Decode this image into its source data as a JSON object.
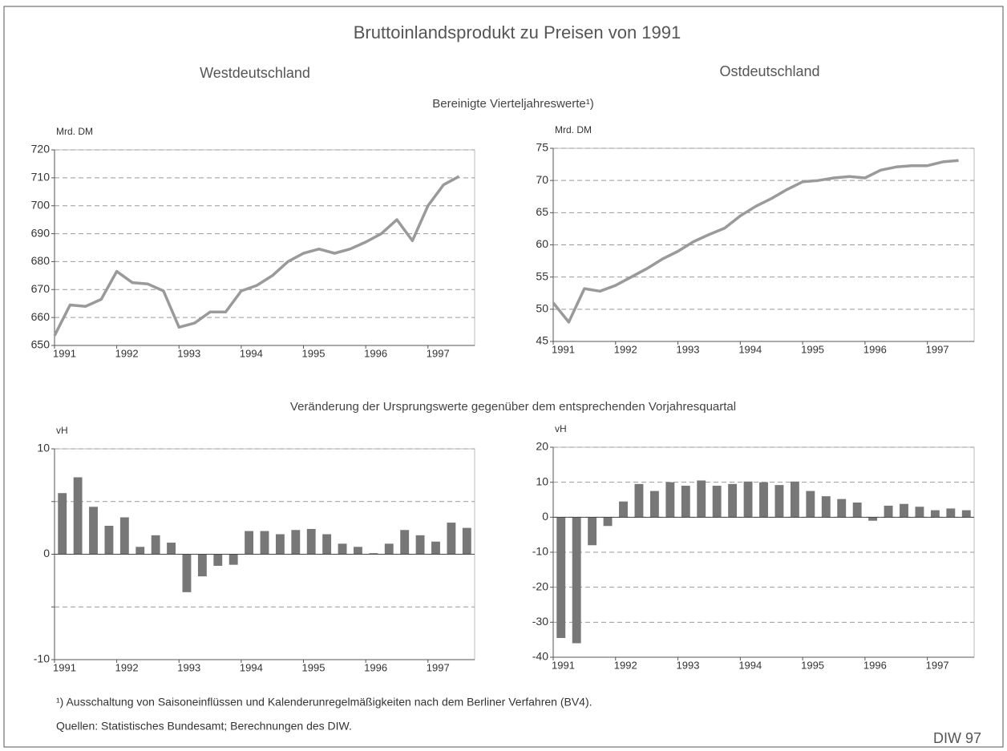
{
  "header": {
    "title": "Bruttoinlandsprodukt zu Preisen von 1991",
    "west": "Westdeutschland",
    "east": "Ostdeutschland",
    "section1": "Bereinigte Vierteljahreswerte¹)",
    "section2": "Veränderung der Ursprungswerte gegenüber dem entsprechenden Vorjahresquartal",
    "footnote": "¹) Ausschaltung von Saisoneinflüssen und Kalenderunregelmäßigkeiten nach dem Berliner Verfahren (BV4).",
    "source": "Quellen: Statistisches Bundesamt; Berechnungen des DIW.",
    "badge": "DIW 97"
  },
  "chart_data": [
    {
      "type": "line",
      "y_label": "Mrd. DM",
      "color": "#9a9a9a",
      "grid": true,
      "x": [
        1991,
        1991.25,
        1991.5,
        1991.75,
        1992,
        1992.25,
        1992.5,
        1992.75,
        1993,
        1993.25,
        1993.5,
        1993.75,
        1994,
        1994.25,
        1994.5,
        1994.75,
        1995,
        1995.25,
        1995.5,
        1995.75,
        1996,
        1996.25,
        1996.5,
        1996.75,
        1997,
        1997.25,
        1997.5
      ],
      "values": [
        653.5,
        664.5,
        664,
        666.5,
        676.5,
        672.5,
        672,
        669.5,
        656.5,
        658,
        662,
        662,
        669.5,
        671.5,
        675,
        680,
        683,
        684.5,
        683,
        684.5,
        687,
        690,
        695,
        687.5,
        700,
        707.5,
        710.5
      ],
      "xlim": [
        1991,
        1997.75
      ],
      "xticks": [
        1991,
        1992,
        1993,
        1994,
        1995,
        1996,
        1997
      ],
      "ylim": [
        650,
        720
      ],
      "yticks": [
        650,
        660,
        670,
        680,
        690,
        700,
        710,
        720
      ]
    },
    {
      "type": "line",
      "y_label": "Mrd. DM",
      "color": "#9a9a9a",
      "grid": true,
      "x": [
        1991,
        1991.25,
        1991.5,
        1991.75,
        1992,
        1992.25,
        1992.5,
        1992.75,
        1993,
        1993.25,
        1993.5,
        1993.75,
        1994,
        1994.25,
        1994.5,
        1994.75,
        1995,
        1995.25,
        1995.5,
        1995.75,
        1996,
        1996.25,
        1996.5,
        1996.75,
        1997,
        1997.25,
        1997.5
      ],
      "values": [
        51,
        48,
        53.2,
        52.8,
        53.7,
        55,
        56.3,
        57.8,
        59,
        60.5,
        61.6,
        62.6,
        64.5,
        66,
        67.2,
        68.6,
        69.8,
        70,
        70.4,
        70.6,
        70.4,
        71.6,
        72.1,
        72.3,
        72.3,
        72.9,
        73.1
      ],
      "xlim": [
        1991,
        1997.75
      ],
      "xticks": [
        1991,
        1992,
        1993,
        1994,
        1995,
        1996,
        1997
      ],
      "ylim": [
        45,
        75
      ],
      "yticks": [
        45,
        50,
        55,
        60,
        65,
        70,
        75
      ]
    },
    {
      "type": "bar",
      "y_label": "vH",
      "color": "#777777",
      "grid": true,
      "x": [
        1991,
        1991.25,
        1991.5,
        1991.75,
        1992,
        1992.25,
        1992.5,
        1992.75,
        1993,
        1993.25,
        1993.5,
        1993.75,
        1994,
        1994.25,
        1994.5,
        1994.75,
        1995,
        1995.25,
        1995.5,
        1995.75,
        1996,
        1996.25,
        1996.5,
        1996.75,
        1997,
        1997.25,
        1997.5
      ],
      "values": [
        5.8,
        7.3,
        4.5,
        2.7,
        3.5,
        0.7,
        1.8,
        1.1,
        -3.6,
        -2.1,
        -1.1,
        -1.0,
        2.2,
        2.2,
        1.9,
        2.3,
        2.4,
        1.9,
        1.0,
        0.7,
        0.1,
        1.0,
        2.3,
        1.8,
        1.2,
        3.0,
        2.5
      ],
      "xlim": [
        1991,
        1997.75
      ],
      "xticks": [
        1991,
        1992,
        1993,
        1994,
        1995,
        1996,
        1997
      ],
      "ylim": [
        -10,
        10
      ],
      "yticks": [
        -10,
        -5,
        0,
        5,
        10
      ],
      "ytick_labels_shown": [
        -10,
        0,
        10
      ]
    },
    {
      "type": "bar",
      "y_label": "vH",
      "color": "#777777",
      "grid": true,
      "x": [
        1991,
        1991.25,
        1991.5,
        1991.75,
        1992,
        1992.25,
        1992.5,
        1992.75,
        1993,
        1993.25,
        1993.5,
        1993.75,
        1994,
        1994.25,
        1994.5,
        1994.75,
        1995,
        1995.25,
        1995.5,
        1995.75,
        1996,
        1996.25,
        1996.5,
        1996.75,
        1997,
        1997.25,
        1997.5
      ],
      "values": [
        -34.5,
        -36,
        -8,
        -2.5,
        4.5,
        9.5,
        7.5,
        10,
        9,
        10.5,
        9,
        9.5,
        10.2,
        10,
        9.2,
        10.2,
        7.5,
        6,
        5.2,
        4.2,
        -1,
        3.3,
        3.8,
        3,
        2,
        2.5,
        2
      ],
      "xlim": [
        1991,
        1997.75
      ],
      "xticks": [
        1991,
        1992,
        1993,
        1994,
        1995,
        1996,
        1997
      ],
      "ylim": [
        -40,
        20
      ],
      "yticks": [
        -40,
        -30,
        -20,
        -10,
        0,
        10,
        20
      ]
    }
  ]
}
